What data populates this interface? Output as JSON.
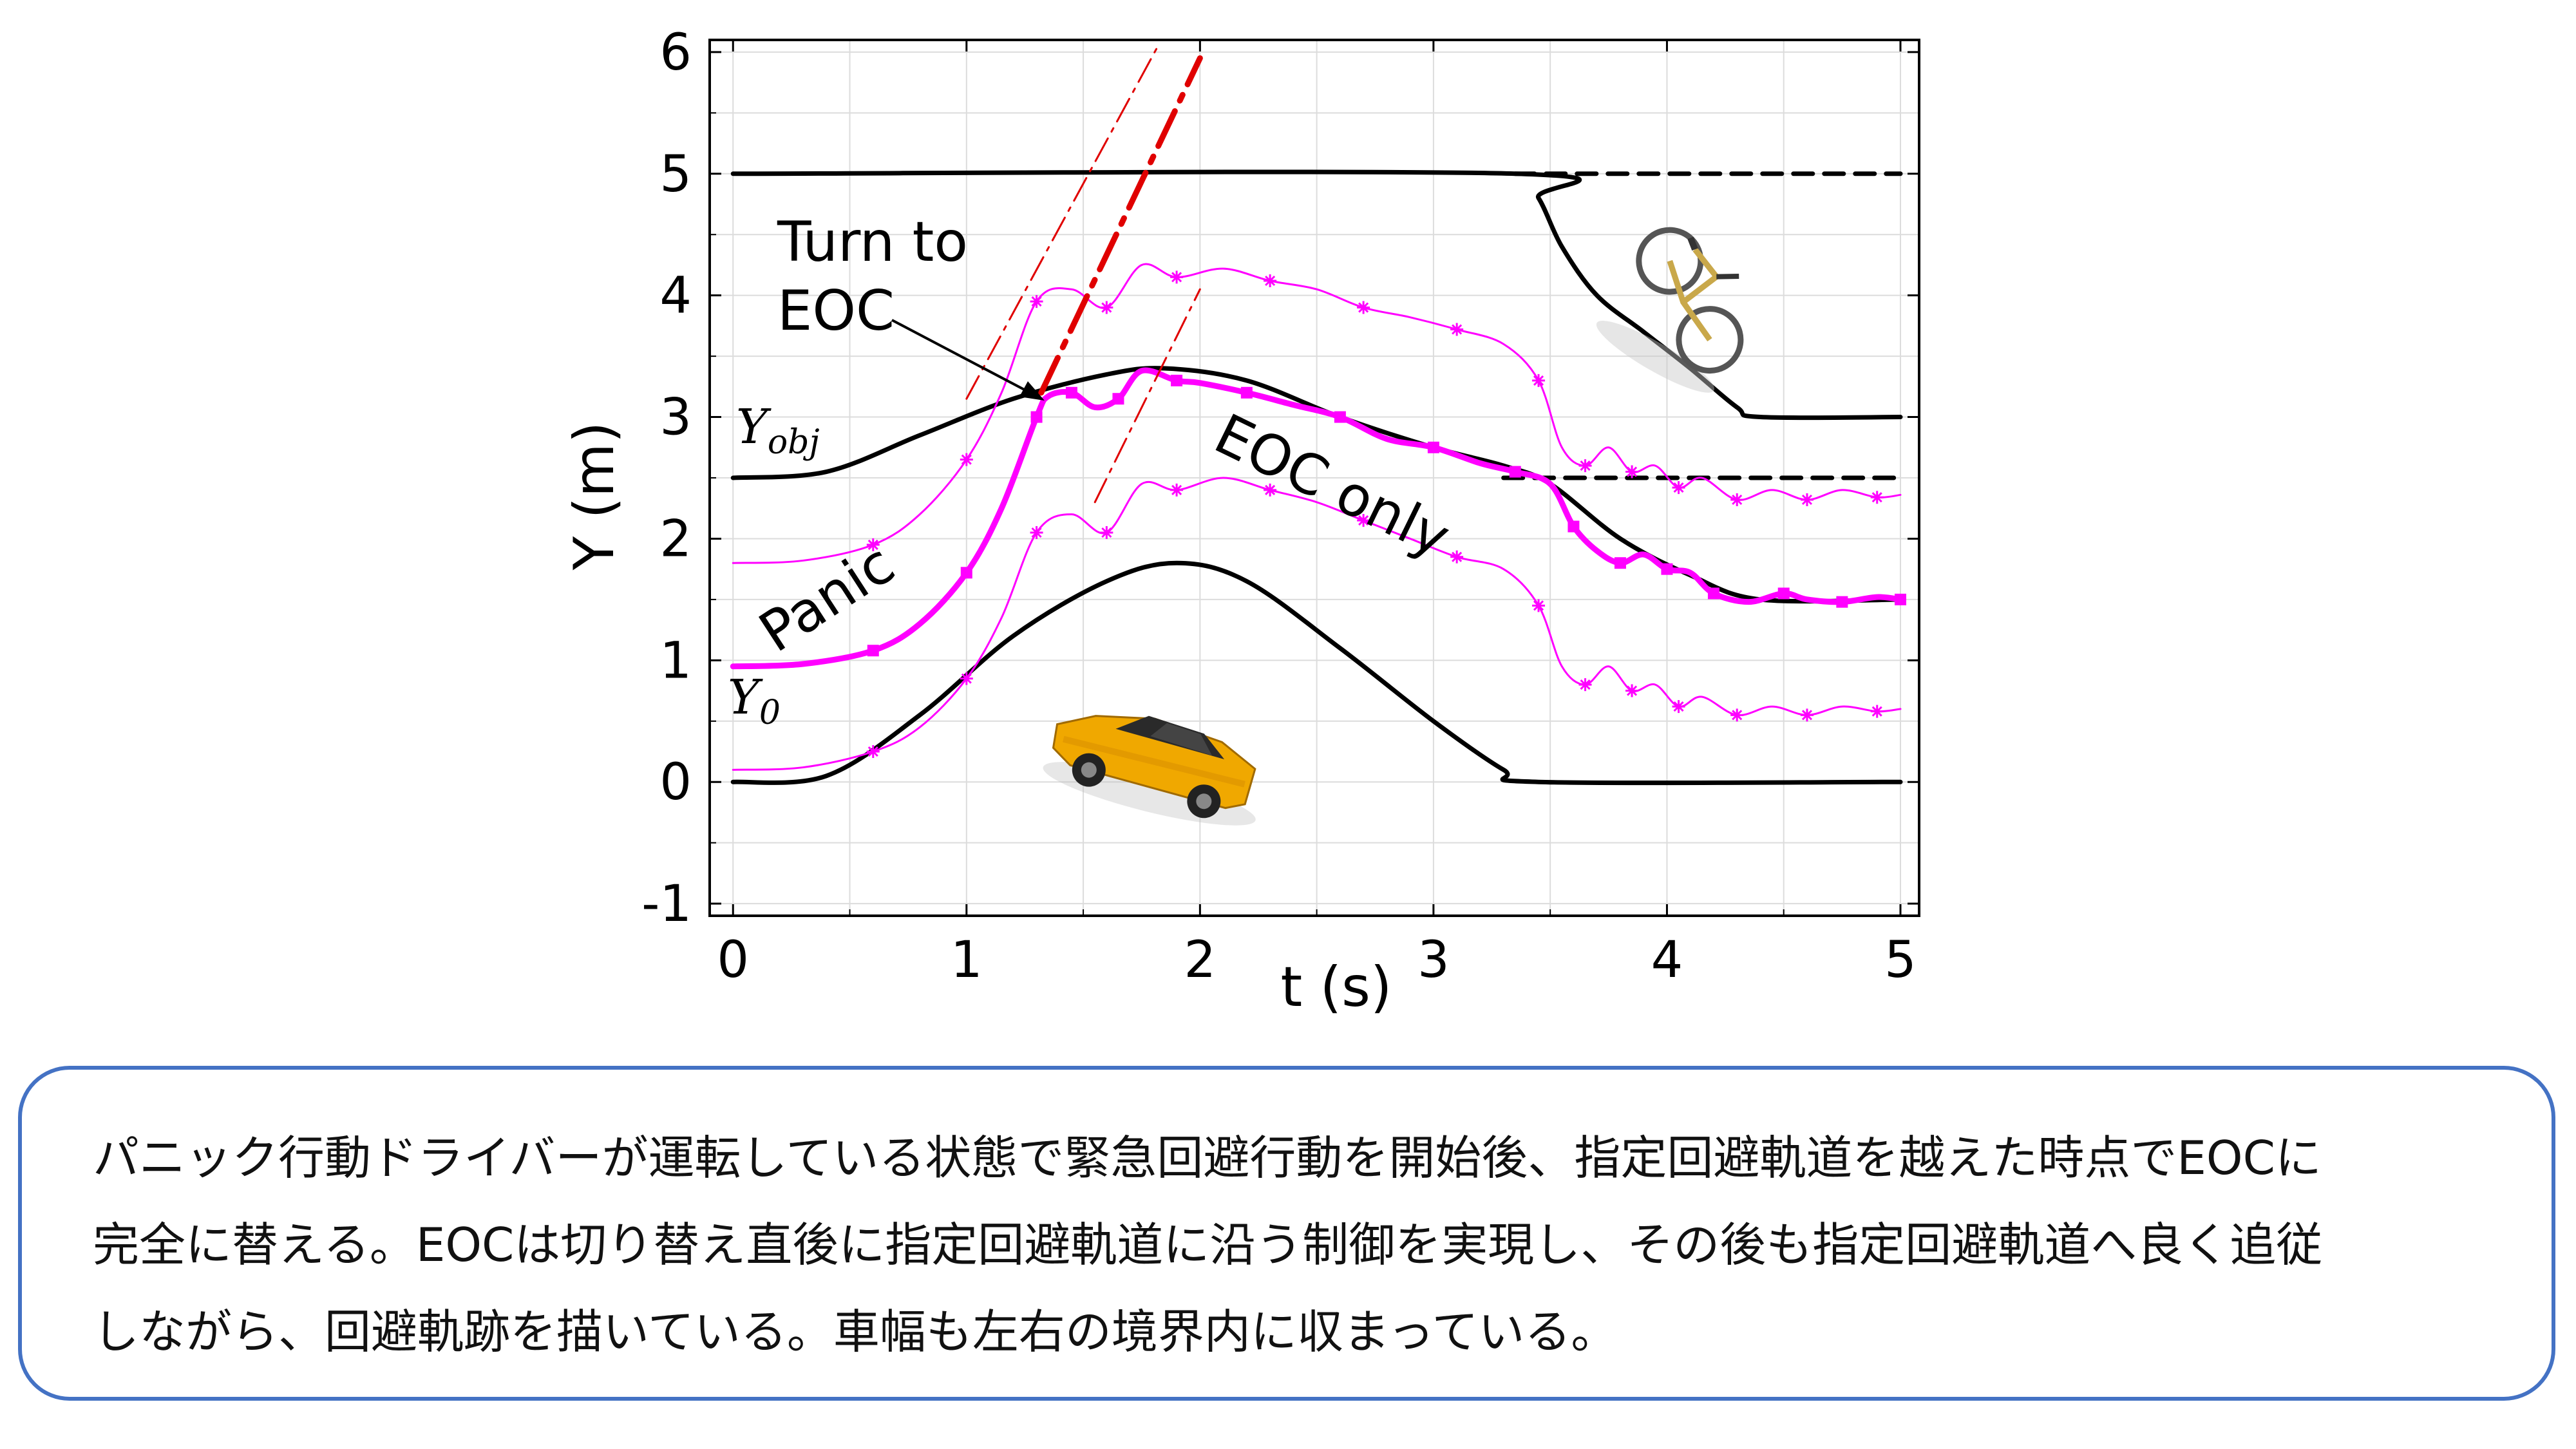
{
  "chart_data": {
    "type": "line",
    "xlabel": "t (s)",
    "ylabel": "Y (m)",
    "xlim": [
      -0.1,
      5.08
    ],
    "ylim": [
      -1.1,
      6.1
    ],
    "xticks": [
      0,
      1,
      2,
      3,
      4,
      5
    ],
    "yticks": [
      -1,
      0,
      1,
      2,
      3,
      4,
      5,
      6
    ],
    "xtick_labels": [
      "0",
      "1",
      "2",
      "3",
      "4",
      "5"
    ],
    "ytick_labels": [
      "-1",
      "0",
      "1",
      "2",
      "3",
      "4",
      "5",
      "6"
    ],
    "grid": true,
    "colors": {
      "boundary": "#000000",
      "trajectory": "#ff00ff",
      "eoc_line": "#e00000"
    },
    "series": [
      {
        "style": "black-solid",
        "points": [
          [
            0,
            0
          ],
          [
            0.4,
            0.05
          ],
          [
            0.8,
            0.55
          ],
          [
            1.2,
            1.2
          ],
          [
            1.6,
            1.65
          ],
          [
            1.9,
            1.8
          ],
          [
            2.2,
            1.65
          ],
          [
            2.6,
            1.1
          ],
          [
            3.0,
            0.5
          ],
          [
            3.3,
            0.1
          ],
          [
            3.45,
            0
          ],
          [
            5.0,
            0
          ]
        ]
      },
      {
        "style": "black-solid",
        "points": [
          [
            0,
            2.5
          ],
          [
            0.4,
            2.55
          ],
          [
            0.8,
            2.85
          ],
          [
            1.2,
            3.15
          ],
          [
            1.6,
            3.35
          ],
          [
            1.85,
            3.4
          ],
          [
            2.2,
            3.3
          ],
          [
            2.6,
            3.0
          ],
          [
            3.0,
            2.75
          ],
          [
            3.3,
            2.6
          ],
          [
            3.5,
            2.45
          ],
          [
            3.8,
            2.0
          ],
          [
            4.1,
            1.7
          ],
          [
            4.4,
            1.5
          ],
          [
            5.0,
            1.5
          ]
        ]
      },
      {
        "style": "black-solid",
        "points": [
          [
            0,
            5
          ],
          [
            3.35,
            5
          ],
          [
            3.45,
            4.8
          ],
          [
            3.55,
            4.4
          ],
          [
            3.7,
            4.0
          ],
          [
            3.9,
            3.7
          ],
          [
            4.1,
            3.4
          ],
          [
            4.3,
            3.08
          ],
          [
            4.4,
            3.0
          ],
          [
            5.0,
            3.0
          ]
        ]
      },
      {
        "style": "black-dashed",
        "points": [
          [
            3.35,
            5
          ],
          [
            5.0,
            5
          ]
        ]
      },
      {
        "style": "black-dashed",
        "points": [
          [
            3.3,
            2.5
          ],
          [
            5.0,
            2.5
          ]
        ]
      },
      {
        "style": "magenta-bold",
        "points": [
          [
            0,
            0.95
          ],
          [
            0.3,
            0.97
          ],
          [
            0.6,
            1.08
          ],
          [
            0.8,
            1.3
          ],
          [
            1.0,
            1.72
          ],
          [
            1.15,
            2.25
          ],
          [
            1.3,
            3.0
          ],
          [
            1.35,
            3.17
          ],
          [
            1.45,
            3.2
          ],
          [
            1.55,
            3.08
          ],
          [
            1.65,
            3.15
          ],
          [
            1.75,
            3.38
          ],
          [
            1.9,
            3.3
          ],
          [
            2.0,
            3.28
          ],
          [
            2.2,
            3.2
          ],
          [
            2.4,
            3.1
          ],
          [
            2.6,
            3.0
          ],
          [
            2.8,
            2.82
          ],
          [
            3.0,
            2.75
          ],
          [
            3.2,
            2.62
          ],
          [
            3.35,
            2.55
          ],
          [
            3.5,
            2.45
          ],
          [
            3.6,
            2.1
          ],
          [
            3.7,
            1.9
          ],
          [
            3.8,
            1.8
          ],
          [
            3.9,
            1.87
          ],
          [
            4.0,
            1.75
          ],
          [
            4.1,
            1.72
          ],
          [
            4.2,
            1.55
          ],
          [
            4.35,
            1.48
          ],
          [
            4.5,
            1.55
          ],
          [
            4.6,
            1.5
          ],
          [
            4.75,
            1.48
          ],
          [
            4.9,
            1.52
          ],
          [
            5.0,
            1.5
          ]
        ]
      },
      {
        "style": "magenta-thin",
        "points": [
          [
            0,
            1.8
          ],
          [
            0.3,
            1.82
          ],
          [
            0.6,
            1.95
          ],
          [
            0.8,
            2.2
          ],
          [
            1.0,
            2.65
          ],
          [
            1.15,
            3.2
          ],
          [
            1.3,
            3.95
          ],
          [
            1.45,
            4.05
          ],
          [
            1.6,
            3.9
          ],
          [
            1.75,
            4.25
          ],
          [
            1.9,
            4.15
          ],
          [
            2.1,
            4.22
          ],
          [
            2.3,
            4.12
          ],
          [
            2.5,
            4.05
          ],
          [
            2.7,
            3.9
          ],
          [
            2.9,
            3.82
          ],
          [
            3.1,
            3.72
          ],
          [
            3.3,
            3.6
          ],
          [
            3.45,
            3.3
          ],
          [
            3.55,
            2.75
          ],
          [
            3.65,
            2.6
          ],
          [
            3.75,
            2.75
          ],
          [
            3.85,
            2.55
          ],
          [
            3.95,
            2.6
          ],
          [
            4.05,
            2.42
          ],
          [
            4.15,
            2.5
          ],
          [
            4.3,
            2.32
          ],
          [
            4.45,
            2.4
          ],
          [
            4.6,
            2.32
          ],
          [
            4.75,
            2.4
          ],
          [
            4.9,
            2.34
          ],
          [
            5.0,
            2.36
          ]
        ]
      },
      {
        "style": "magenta-thin",
        "points": [
          [
            0,
            0.1
          ],
          [
            0.3,
            0.12
          ],
          [
            0.6,
            0.25
          ],
          [
            0.8,
            0.45
          ],
          [
            1.0,
            0.85
          ],
          [
            1.15,
            1.35
          ],
          [
            1.3,
            2.05
          ],
          [
            1.45,
            2.2
          ],
          [
            1.6,
            2.05
          ],
          [
            1.75,
            2.45
          ],
          [
            1.9,
            2.4
          ],
          [
            2.1,
            2.5
          ],
          [
            2.3,
            2.4
          ],
          [
            2.5,
            2.3
          ],
          [
            2.7,
            2.15
          ],
          [
            2.9,
            2.0
          ],
          [
            3.1,
            1.85
          ],
          [
            3.3,
            1.75
          ],
          [
            3.45,
            1.45
          ],
          [
            3.55,
            0.95
          ],
          [
            3.65,
            0.8
          ],
          [
            3.75,
            0.95
          ],
          [
            3.85,
            0.75
          ],
          [
            3.95,
            0.8
          ],
          [
            4.05,
            0.62
          ],
          [
            4.15,
            0.7
          ],
          [
            4.3,
            0.55
          ],
          [
            4.45,
            0.62
          ],
          [
            4.6,
            0.55
          ],
          [
            4.75,
            0.62
          ],
          [
            4.9,
            0.58
          ],
          [
            5.0,
            0.6
          ]
        ]
      },
      {
        "style": "red-dashdot",
        "points": [
          [
            1.32,
            3.2
          ],
          [
            2.0,
            5.95
          ]
        ]
      },
      {
        "style": "red-thin-dashdot",
        "points": [
          [
            1.0,
            3.15
          ],
          [
            1.82,
            6.05
          ]
        ]
      },
      {
        "style": "red-thin-dashdot",
        "points": [
          [
            1.55,
            2.3
          ],
          [
            2.0,
            4.05
          ]
        ]
      }
    ],
    "annotations": {
      "turn_to_line1": "Turn to",
      "turn_to_line2": "EOC",
      "eoc_only": "EOC only",
      "panic": "Panic",
      "y_obj_main": "Y",
      "y_obj_sub": "obj",
      "y0_main": "Y",
      "y0_sub": "0"
    }
  },
  "caption": {
    "text": "パニック行動ドライバーが運転している状態で緊急回避行動を開始後、指定回避軌道を越えた時点でEOCに\n完全に替える。EOCは切り替え直後に指定回避軌道に沿う制御を実現し、その後も指定回避軌道へ良く追従\nしながら、回避軌跡を描いている。車幅も左右の境界内に収まっている。"
  }
}
